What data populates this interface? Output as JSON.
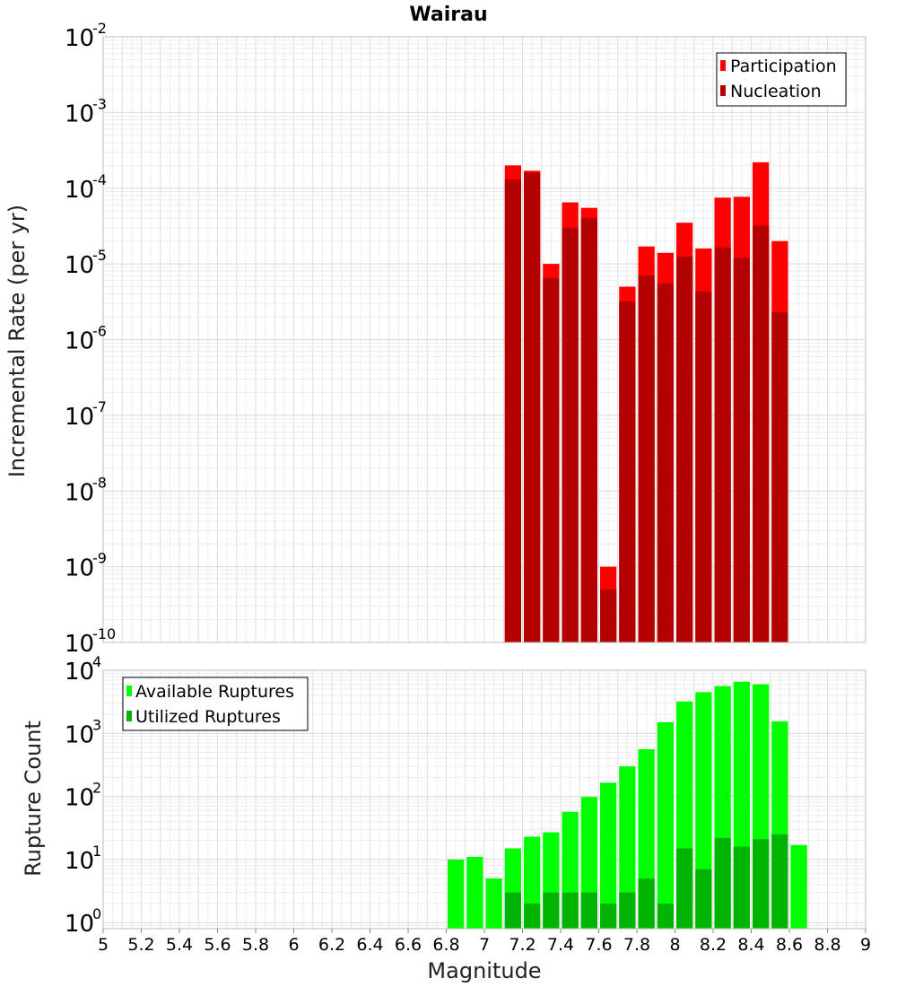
{
  "chart_data": [
    {
      "type": "bar",
      "title": "Wairau",
      "xlabel": "",
      "ylabel": "Incremental Rate (per yr)",
      "yscale": "log",
      "xlim": [
        5,
        9
      ],
      "ylim": [
        1e-10,
        0.01
      ],
      "ytick_exponents": [
        -10,
        -9,
        -8,
        -7,
        -6,
        -5,
        -4,
        -3,
        -2
      ],
      "grid": true,
      "legend_position": "top-right",
      "bin_width": 0.1,
      "x": [
        7.15,
        7.25,
        7.35,
        7.45,
        7.55,
        7.65,
        7.75,
        7.85,
        7.95,
        8.05,
        8.15,
        8.25,
        8.35,
        8.45,
        8.55
      ],
      "series": [
        {
          "name": "Participation",
          "color": "#ff0000",
          "values": [
            0.0002,
            0.00017,
            1e-05,
            6.5e-05,
            5.5e-05,
            1e-09,
            5e-06,
            1.7e-05,
            1.4e-05,
            3.5e-05,
            1.6e-05,
            7.5e-05,
            7.7e-05,
            0.00022,
            2e-05
          ]
        },
        {
          "name": "Nucleation",
          "color": "#b30000",
          "values": [
            0.00013,
            0.00016,
            6.5e-06,
            3e-05,
            4e-05,
            5e-10,
            3.2e-06,
            7e-06,
            5.5e-06,
            1.25e-05,
            4.3e-06,
            1.65e-05,
            1.2e-05,
            3.2e-05,
            2.3e-06
          ]
        }
      ]
    },
    {
      "type": "bar",
      "title": "",
      "xlabel": "Magnitude",
      "ylabel": "Rupture Count",
      "yscale": "log",
      "xlim": [
        5,
        9
      ],
      "ylim": [
        0.8,
        10000.0
      ],
      "ytick_exponents": [
        0,
        1,
        2,
        3,
        4
      ],
      "xticks": [
        "5",
        "5.2",
        "5.4",
        "5.6",
        "5.8",
        "6",
        "6.2",
        "6.4",
        "6.6",
        "6.8",
        "7",
        "7.2",
        "7.4",
        "7.6",
        "7.8",
        "8",
        "8.2",
        "8.4",
        "8.6",
        "8.8",
        "9"
      ],
      "grid": true,
      "legend_position": "top-left",
      "bin_width": 0.1,
      "x": [
        6.85,
        6.95,
        7.05,
        7.15,
        7.25,
        7.35,
        7.45,
        7.55,
        7.65,
        7.75,
        7.85,
        7.95,
        8.05,
        8.15,
        8.25,
        8.35,
        8.45,
        8.55,
        8.65
      ],
      "series": [
        {
          "name": "Available Ruptures",
          "color": "#00ff00",
          "values": [
            10,
            11,
            5,
            15,
            23,
            27,
            57,
            98,
            165,
            300,
            560,
            1500,
            3200,
            4500,
            5600,
            6600,
            6000,
            1550,
            17
          ]
        },
        {
          "name": "Utilized Ruptures",
          "color": "#00b300",
          "values": [
            0,
            0,
            0,
            3,
            2,
            3,
            3,
            3,
            2,
            3,
            5,
            2,
            15,
            7,
            22,
            16,
            21,
            25,
            0
          ]
        }
      ]
    }
  ]
}
